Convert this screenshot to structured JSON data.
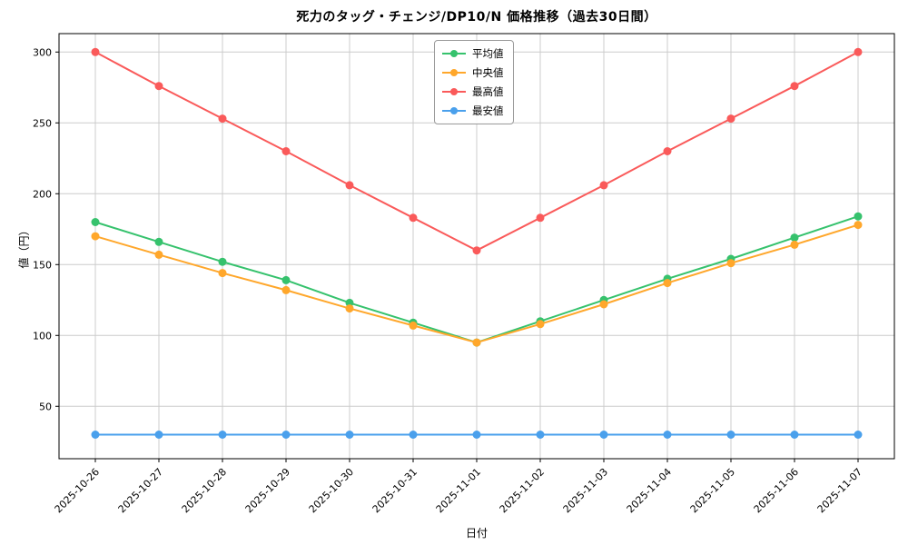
{
  "chart_data": {
    "type": "line",
    "title": "死力のタッグ・チェンジ/DP10/N 価格推移（過去30日間）",
    "xlabel": "日付",
    "ylabel": "値（円）",
    "x": [
      "2025-10-26",
      "2025-10-27",
      "2025-10-28",
      "2025-10-29",
      "2025-10-30",
      "2025-10-31",
      "2025-11-01",
      "2025-11-02",
      "2025-11-03",
      "2025-11-04",
      "2025-11-05",
      "2025-11-06",
      "2025-11-07"
    ],
    "series": [
      {
        "name": "平均値",
        "color": "#36c26d",
        "values": [
          180,
          166,
          152,
          139,
          123,
          109,
          95,
          110,
          125,
          140,
          154,
          169,
          184
        ]
      },
      {
        "name": "中央値",
        "color": "#ffa72b",
        "values": [
          170,
          157,
          144,
          132,
          119,
          107,
          95,
          108,
          122,
          137,
          151,
          164,
          178
        ]
      },
      {
        "name": "最高値",
        "color": "#fa5a5a",
        "values": [
          300,
          276,
          253,
          230,
          206,
          183,
          160,
          183,
          206,
          230,
          253,
          276,
          300
        ]
      },
      {
        "name": "最安値",
        "color": "#4aa0ec",
        "values": [
          30,
          30,
          30,
          30,
          30,
          30,
          30,
          30,
          30,
          30,
          30,
          30,
          30
        ]
      }
    ],
    "yticks": [
      50,
      100,
      150,
      200,
      250,
      300
    ],
    "ylim": [
      13,
      313
    ],
    "grid": true,
    "grid_color": "#cccccc",
    "legend_position": "upper center",
    "marker": "circle",
    "line_width": 2
  }
}
